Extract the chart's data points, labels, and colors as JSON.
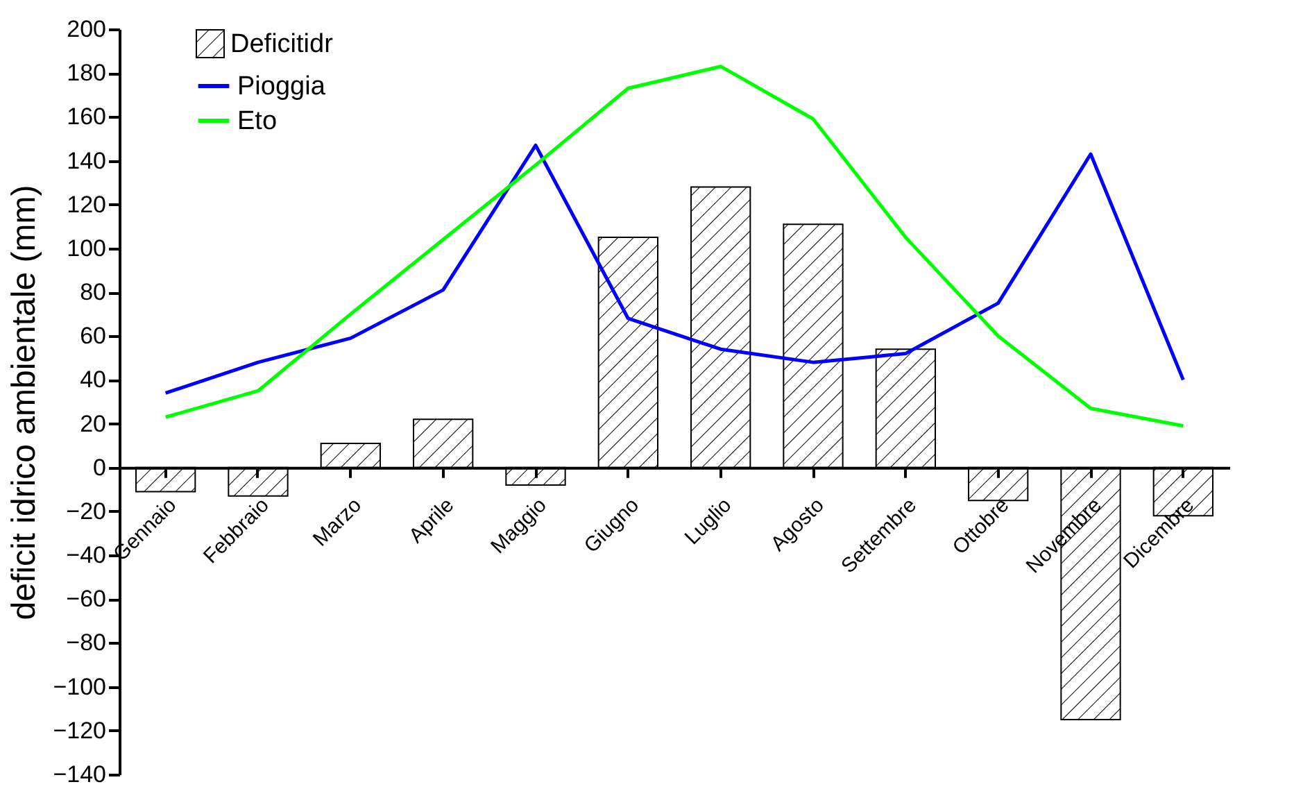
{
  "chart_data": {
    "type": "bar",
    "ylabel": "deficit idrico ambientale (mm)",
    "categories": [
      "Gennaio",
      "Febbraio",
      "Marzo",
      "Aprile",
      "Maggio",
      "Giugno",
      "Luglio",
      "Agosto",
      "Settembre",
      "Ottobre",
      "Novembre",
      "Dicembre"
    ],
    "series": [
      {
        "name": "Deficitidr",
        "type": "bar",
        "color": "#000000",
        "values": [
          -11,
          -13,
          11,
          22,
          -8,
          105,
          128,
          111,
          54,
          -15,
          -115,
          -22
        ]
      },
      {
        "name": "Pioggia",
        "type": "line",
        "color": "#0000ff",
        "values": [
          34,
          48,
          59,
          81,
          147,
          68,
          54,
          48,
          52,
          75,
          143,
          40
        ]
      },
      {
        "name": "Eto",
        "type": "line",
        "color": "#00ff00",
        "values": [
          23,
          35,
          70,
          104,
          138,
          173,
          183,
          159,
          105,
          60,
          27,
          19
        ]
      }
    ],
    "ylim": [
      -140,
      200
    ],
    "yticks": [
      -140,
      -120,
      -100,
      -80,
      -60,
      -40,
      -20,
      0,
      20,
      40,
      60,
      80,
      100,
      120,
      140,
      160,
      180,
      200
    ],
    "grid": false,
    "legend": "top left"
  }
}
